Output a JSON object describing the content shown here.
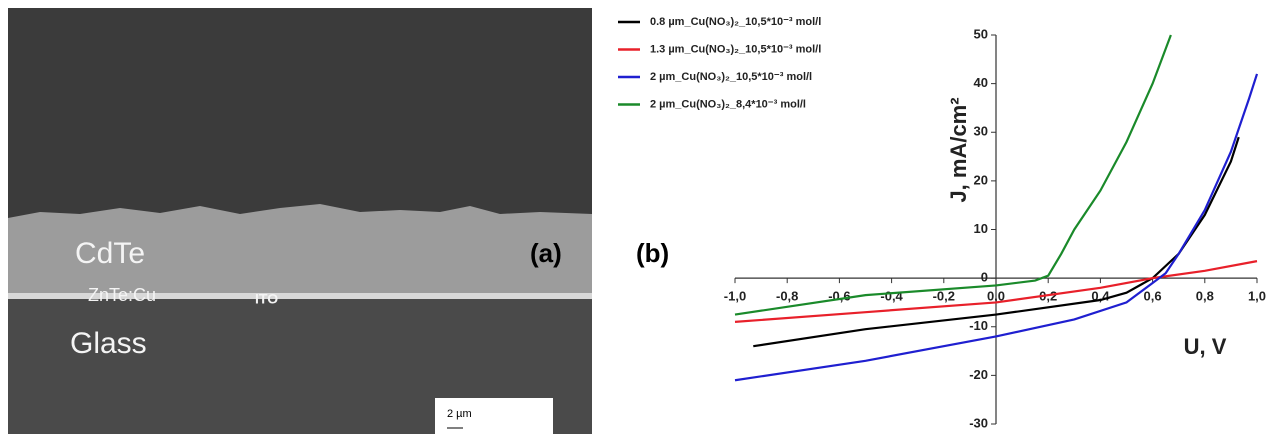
{
  "image_panel": {
    "panel_label": "(a)",
    "layers": [
      "CdTe",
      "ZnTe:Cu",
      "ITO",
      "Glass"
    ],
    "scale_bar": "2 µm"
  },
  "chart_data": {
    "type": "line",
    "panel_label": "(b)",
    "x_label": "U, V",
    "y_label": "J, mA/cm²",
    "xlim": [
      -1.0,
      1.0
    ],
    "ylim": [
      -30,
      50
    ],
    "xticks": [
      {
        "value": -1.0,
        "label": "-1,0"
      },
      {
        "value": -0.8,
        "label": "-0,8"
      },
      {
        "value": -0.6,
        "label": "-0,6"
      },
      {
        "value": -0.4,
        "label": "-0,4"
      },
      {
        "value": -0.2,
        "label": "-0,2"
      },
      {
        "value": 0,
        "label": "0,0"
      },
      {
        "value": 0.2,
        "label": "0,2"
      },
      {
        "value": 0.4,
        "label": "0,4"
      },
      {
        "value": 0.6,
        "label": "0,6"
      },
      {
        "value": 0.8,
        "label": "0,8"
      },
      {
        "value": 1.0,
        "label": "1,0"
      }
    ],
    "yticks": [
      -30,
      -20,
      -10,
      0,
      10,
      20,
      30,
      40,
      50
    ],
    "series": [
      {
        "name": "0.8 µm_Cu(NO₃)₂_10,5*10⁻³ mol/l",
        "color": "#000000",
        "x": [
          -0.93,
          -0.5,
          0,
          0.4,
          0.5,
          0.6,
          0.7,
          0.8,
          0.9,
          0.93
        ],
        "values": [
          -14,
          -10.5,
          -7.5,
          -4.5,
          -3,
          0,
          5,
          13,
          24,
          29
        ]
      },
      {
        "name": "1.3 µm_Cu(NO₃)₂_10,5*10⁻³ mol/l",
        "color": "#e8202a",
        "x": [
          -1.0,
          -0.5,
          0,
          0.4,
          0.6,
          0.8,
          1.0
        ],
        "values": [
          -9,
          -7,
          -5,
          -2,
          0,
          1.5,
          3.5
        ]
      },
      {
        "name": "2 µm_Cu(NO₃)₂_10,5*10⁻³ mol/l",
        "color": "#1f1fd0",
        "x": [
          -1.0,
          -0.5,
          0,
          0.3,
          0.5,
          0.6,
          0.65,
          0.7,
          0.8,
          0.9,
          0.97,
          1.0
        ],
        "values": [
          -21,
          -17,
          -12,
          -8.5,
          -5,
          -1,
          1,
          5,
          14,
          26,
          37,
          42
        ]
      },
      {
        "name": "2 µm_Cu(NO₃)₂_8,4*10⁻³ mol/l",
        "color": "#1a8a2a",
        "x": [
          -1.0,
          -0.5,
          0,
          0.15,
          0.2,
          0.25,
          0.3,
          0.4,
          0.5,
          0.6,
          0.67
        ],
        "values": [
          -7.5,
          -3.5,
          -1.5,
          -0.5,
          0.5,
          5,
          10,
          18,
          28,
          40,
          50
        ]
      }
    ]
  }
}
